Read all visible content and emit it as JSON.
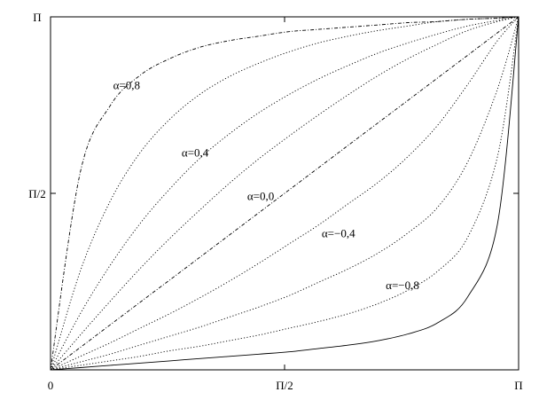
{
  "chart_data": {
    "type": "line",
    "title": "",
    "xlabel": "",
    "ylabel": "",
    "xlim": [
      0,
      3.14159
    ],
    "ylim": [
      0,
      3.14159
    ],
    "grid": false,
    "x_ticks": [
      {
        "value": 0,
        "label": "0"
      },
      {
        "value": 1.5708,
        "label": "Π/2"
      },
      {
        "value": 3.14159,
        "label": "Π"
      }
    ],
    "y_ticks": [
      {
        "value": 1.5708,
        "label": "Π/2"
      },
      {
        "value": 3.14159,
        "label": "Π"
      }
    ],
    "series": [
      {
        "alpha": 0.8,
        "style": "dashdot",
        "x": [
          0,
          0.2,
          0.4,
          0.6,
          0.8,
          1.0,
          1.2,
          1.4,
          1.6,
          1.8,
          2.0,
          2.2,
          2.4,
          2.6,
          2.8,
          3.0,
          3.14159
        ],
        "y": [
          0,
          1.76,
          2.35,
          2.62,
          2.77,
          2.87,
          2.93,
          2.97,
          3.01,
          3.03,
          3.05,
          3.07,
          3.09,
          3.1,
          3.12,
          3.13,
          3.14159
        ]
      },
      {
        "alpha": 0.6,
        "style": "dotted",
        "x": [
          0,
          0.2,
          0.4,
          0.6,
          0.8,
          1.0,
          1.2,
          1.4,
          1.6,
          1.8,
          2.0,
          2.2,
          2.4,
          2.6,
          2.8,
          3.0,
          3.14159
        ],
        "y": [
          0,
          0.88,
          1.5,
          1.93,
          2.23,
          2.45,
          2.61,
          2.73,
          2.83,
          2.91,
          2.97,
          3.02,
          3.06,
          3.1,
          3.12,
          3.13,
          3.14159
        ]
      },
      {
        "alpha": 0.4,
        "style": "dotted",
        "x": [
          0,
          0.2,
          0.4,
          0.6,
          0.8,
          1.0,
          1.2,
          1.4,
          1.6,
          1.8,
          2.0,
          2.2,
          2.4,
          2.6,
          2.8,
          3.0,
          3.14159
        ],
        "y": [
          0,
          0.5,
          0.93,
          1.3,
          1.61,
          1.88,
          2.1,
          2.29,
          2.45,
          2.59,
          2.71,
          2.82,
          2.91,
          2.99,
          3.06,
          3.11,
          3.14159
        ]
      },
      {
        "alpha": 0.2,
        "style": "dotted",
        "x": [
          0,
          0.2,
          0.4,
          0.6,
          0.8,
          1.0,
          1.2,
          1.4,
          1.6,
          1.8,
          2.0,
          2.2,
          2.4,
          2.6,
          2.8,
          3.0,
          3.14159
        ],
        "y": [
          0,
          0.31,
          0.61,
          0.9,
          1.17,
          1.42,
          1.66,
          1.88,
          2.08,
          2.27,
          2.45,
          2.62,
          2.77,
          2.9,
          3.02,
          3.1,
          3.14159
        ]
      },
      {
        "alpha": 0.0,
        "style": "dashdot",
        "x": [
          0,
          0.2,
          0.4,
          0.6,
          0.8,
          1.0,
          1.2,
          1.4,
          1.6,
          1.8,
          2.0,
          2.2,
          2.4,
          2.6,
          2.8,
          3.0,
          3.14159
        ],
        "y": [
          0,
          0.2,
          0.4,
          0.6,
          0.8,
          1.0,
          1.2,
          1.4,
          1.6,
          1.8,
          2.0,
          2.2,
          2.4,
          2.6,
          2.8,
          3.0,
          3.14159
        ]
      },
      {
        "alpha": -0.2,
        "style": "dotted",
        "x": [
          0,
          0.2,
          0.4,
          0.6,
          0.8,
          1.0,
          1.2,
          1.4,
          1.6,
          1.8,
          2.0,
          2.2,
          2.4,
          2.6,
          2.8,
          3.0,
          3.14159
        ],
        "y": [
          0,
          0.12,
          0.24,
          0.37,
          0.5,
          0.64,
          0.79,
          0.95,
          1.12,
          1.29,
          1.48,
          1.67,
          1.9,
          2.18,
          2.54,
          2.93,
          3.14159
        ]
      },
      {
        "alpha": -0.4,
        "style": "dotted",
        "x": [
          0,
          0.2,
          0.4,
          0.6,
          0.8,
          1.0,
          1.2,
          1.4,
          1.6,
          1.8,
          2.0,
          2.2,
          2.4,
          2.6,
          2.8,
          3.0,
          3.14159
        ],
        "y": [
          0,
          0.07,
          0.14,
          0.22,
          0.3,
          0.38,
          0.47,
          0.56,
          0.66,
          0.78,
          0.9,
          1.04,
          1.22,
          1.45,
          1.85,
          2.5,
          3.14159
        ]
      },
      {
        "alpha": -0.6,
        "style": "dotted",
        "x": [
          0,
          0.2,
          0.4,
          0.6,
          0.8,
          1.0,
          1.2,
          1.4,
          1.6,
          1.8,
          2.0,
          2.2,
          2.4,
          2.6,
          2.8,
          3.0,
          3.14159
        ],
        "y": [
          0,
          0.04,
          0.08,
          0.12,
          0.17,
          0.21,
          0.26,
          0.31,
          0.37,
          0.43,
          0.5,
          0.59,
          0.71,
          0.88,
          1.18,
          1.9,
          3.14159
        ]
      },
      {
        "alpha": -0.8,
        "style": "solid",
        "x": [
          0,
          0.2,
          0.4,
          0.6,
          0.8,
          1.0,
          1.2,
          1.4,
          1.6,
          1.8,
          2.0,
          2.2,
          2.4,
          2.6,
          2.8,
          3.0,
          3.14159
        ],
        "y": [
          0,
          0.02,
          0.04,
          0.06,
          0.08,
          0.1,
          0.12,
          0.14,
          0.16,
          0.19,
          0.22,
          0.26,
          0.32,
          0.42,
          0.65,
          1.3,
          3.14159
        ]
      }
    ],
    "annotations": [
      {
        "text": "α=0,8",
        "x": 0.42,
        "y": 2.5
      },
      {
        "text": "α=0,4",
        "x": 0.88,
        "y": 1.9
      },
      {
        "text": "α=0,0",
        "x": 1.32,
        "y": 1.51
      },
      {
        "text": "α=−0,4",
        "x": 1.82,
        "y": 1.18
      },
      {
        "text": "α=−0,8",
        "x": 2.25,
        "y": 0.72
      }
    ]
  }
}
